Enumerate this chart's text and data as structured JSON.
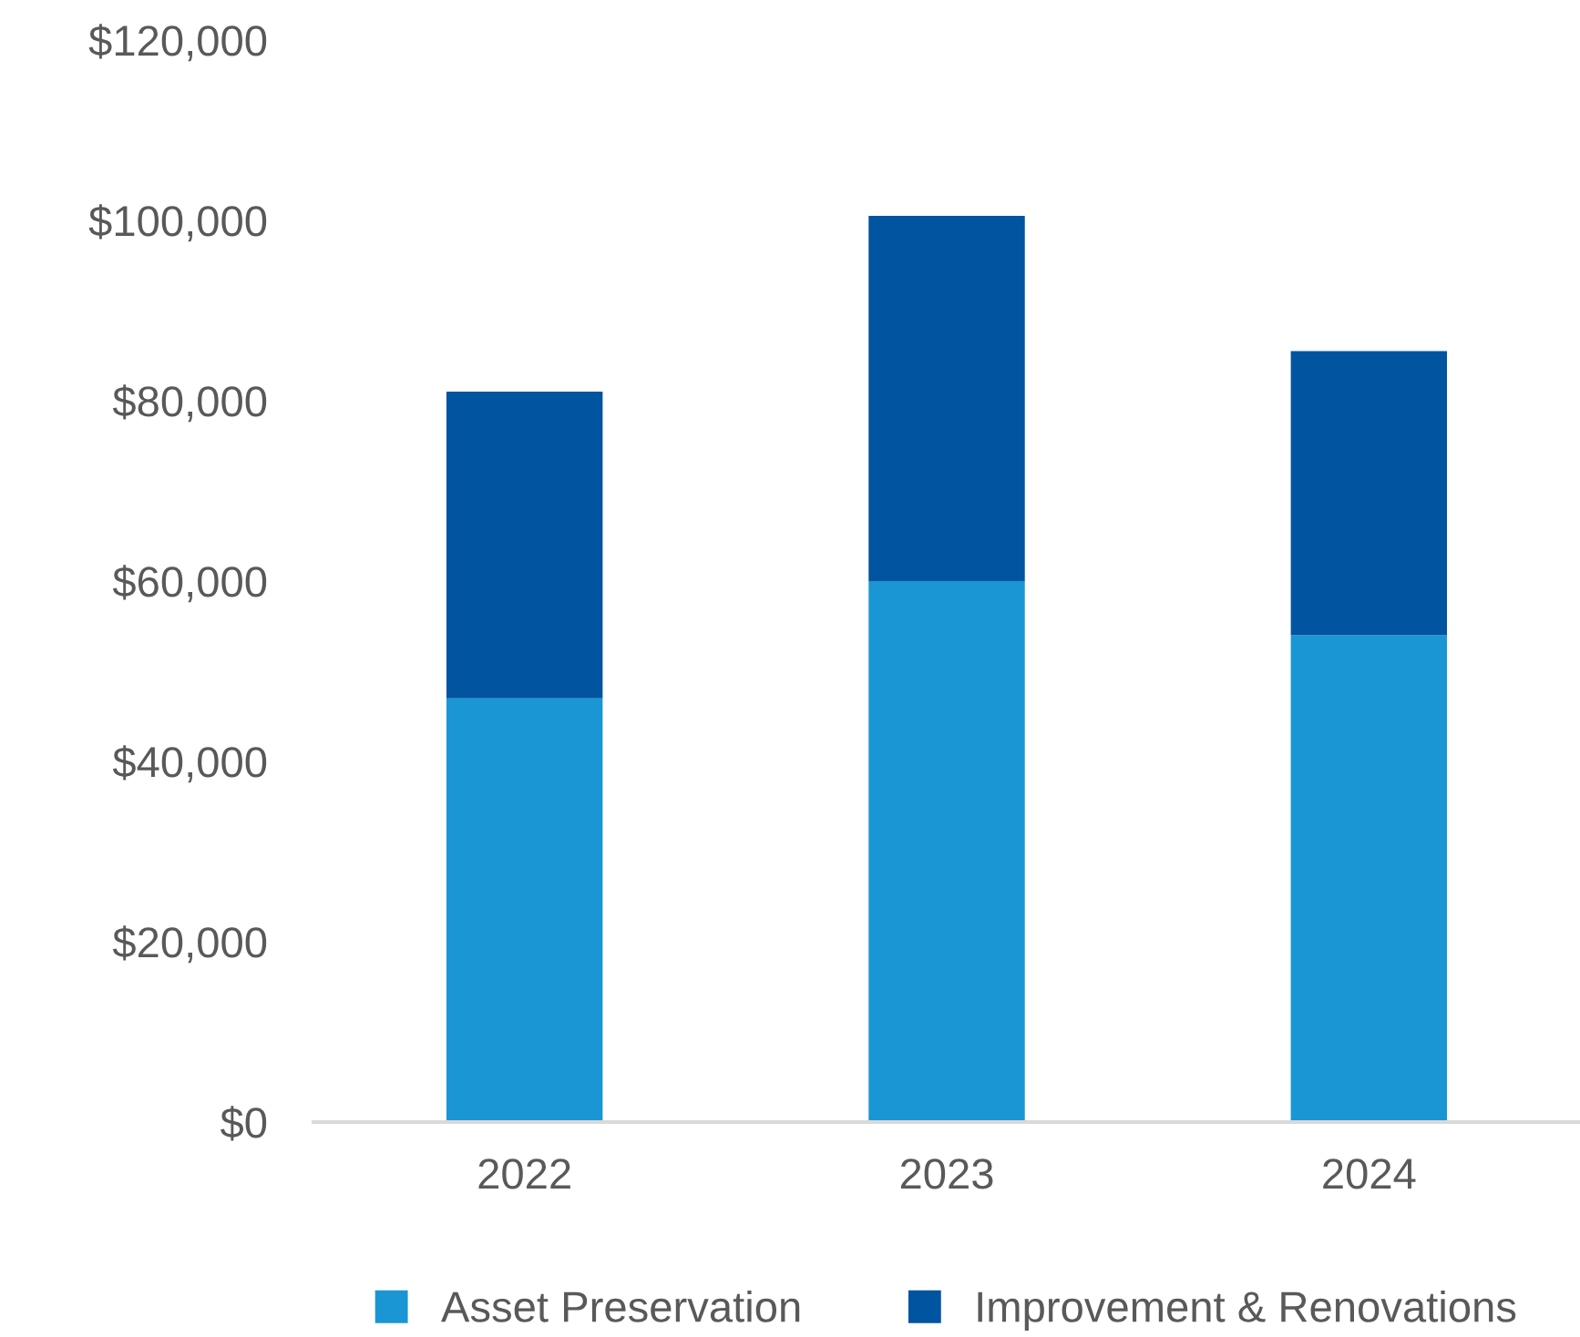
{
  "chart_data": {
    "type": "bar",
    "stacked": true,
    "categories": [
      "2022",
      "2023",
      "2024"
    ],
    "series": [
      {
        "name": "Asset Preservation",
        "color": "#1b96d4",
        "values": [
          47000,
          60000,
          54000
        ]
      },
      {
        "name": "Improvement & Renovations",
        "color": "#0154a0",
        "values": [
          34000,
          40500,
          31500
        ]
      }
    ],
    "ylim": [
      0,
      120000
    ],
    "yticks": [
      {
        "value": 0,
        "label": "$0"
      },
      {
        "value": 20000,
        "label": "$20,000"
      },
      {
        "value": 40000,
        "label": "$40,000"
      },
      {
        "value": 60000,
        "label": "$60,000"
      },
      {
        "value": 80000,
        "label": "$80,000"
      },
      {
        "value": 100000,
        "label": "$100,000"
      },
      {
        "value": 120000,
        "label": "$120,000"
      }
    ],
    "grid": false,
    "legend": "bottom"
  }
}
